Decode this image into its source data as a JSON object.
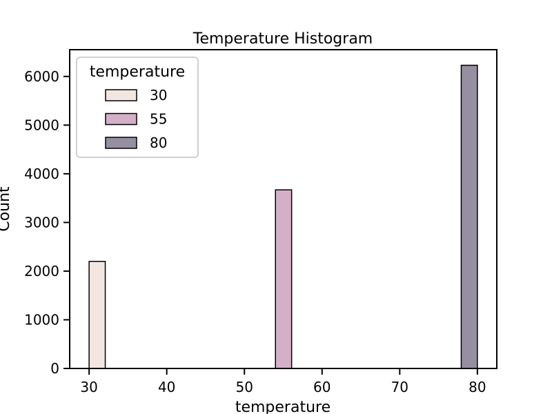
{
  "chart_data": {
    "type": "bar",
    "title": "Temperature Histogram",
    "xlabel": "temperature",
    "ylabel": "Count",
    "xlim": [
      27.5,
      82.5
    ],
    "ylim": [
      0,
      6550
    ],
    "xticks": [
      30,
      40,
      50,
      60,
      70,
      80
    ],
    "yticks": [
      0,
      1000,
      2000,
      3000,
      4000,
      5000,
      6000
    ],
    "bin_width": 2.08,
    "series": [
      {
        "name": "30",
        "bin_start": 30,
        "value": 2200,
        "color": "#f2e6e3"
      },
      {
        "name": "55",
        "bin_start": 54,
        "value": 3670,
        "color": "#d4b0c8"
      },
      {
        "name": "80",
        "bin_start": 77.92,
        "value": 6230,
        "color": "#968ea1"
      }
    ],
    "legend": {
      "title": "temperature",
      "placement": "top-left"
    },
    "grid": false
  }
}
